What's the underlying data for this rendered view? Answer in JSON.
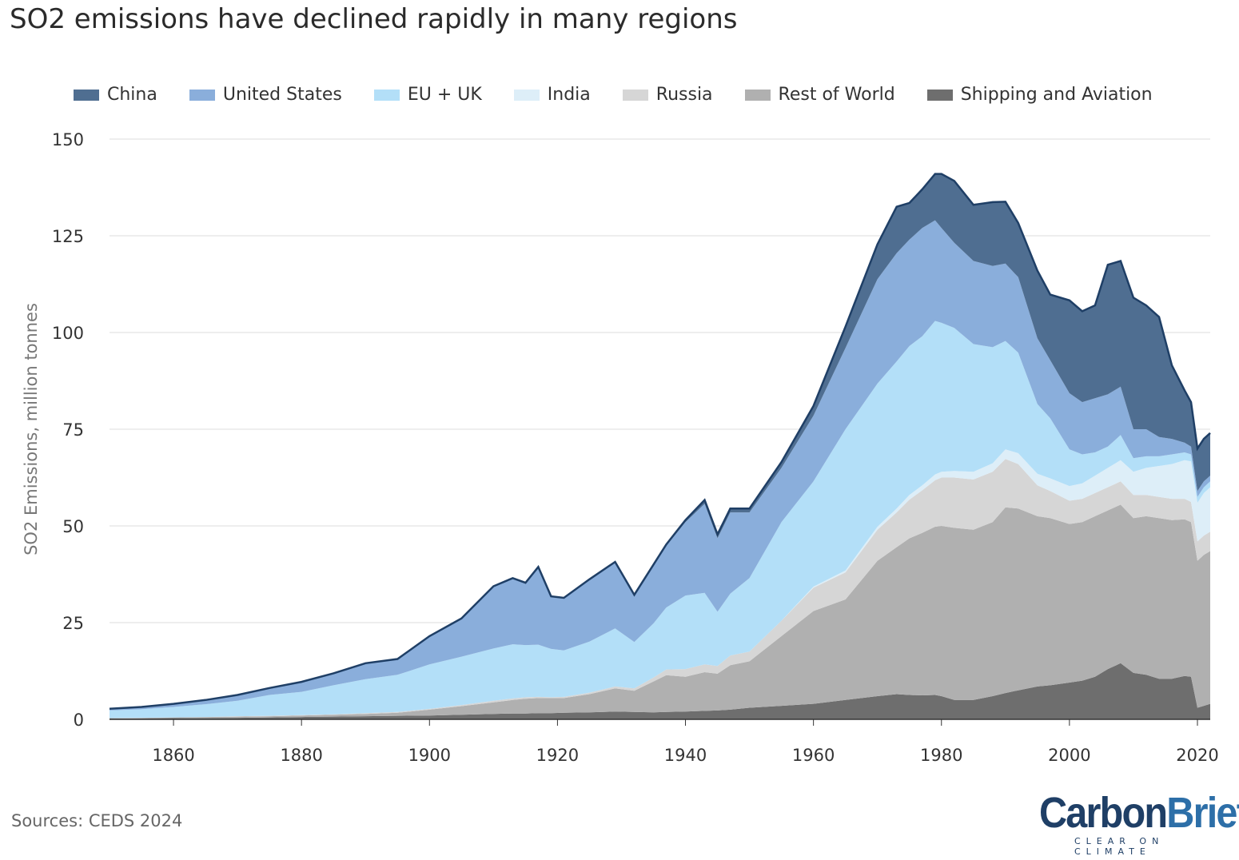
{
  "chart_data": {
    "type": "area",
    "stacked": true,
    "title": "SO2 emissions have declined rapidly in many regions",
    "ylabel": "SO2 Emissions, million tonnes",
    "xlabel": "",
    "xlim": [
      1850,
      2022
    ],
    "ylim": [
      0,
      150
    ],
    "yticks": [
      0,
      25,
      50,
      75,
      100,
      125,
      150
    ],
    "xticks": [
      1860,
      1880,
      1900,
      1920,
      1940,
      1960,
      1980,
      2000,
      2020
    ],
    "grid": true,
    "legend_position": "top",
    "x": [
      1850,
      1855,
      1860,
      1865,
      1870,
      1875,
      1880,
      1885,
      1890,
      1895,
      1900,
      1905,
      1910,
      1913,
      1915,
      1917,
      1919,
      1921,
      1925,
      1929,
      1932,
      1935,
      1937,
      1940,
      1943,
      1945,
      1947,
      1950,
      1955,
      1960,
      1965,
      1970,
      1973,
      1975,
      1977,
      1979,
      1980,
      1982,
      1985,
      1988,
      1990,
      1992,
      1995,
      1997,
      2000,
      2002,
      2004,
      2006,
      2008,
      2010,
      2012,
      2014,
      2016,
      2018,
      2019,
      2020,
      2021,
      2022
    ],
    "series": [
      {
        "name": "Shipping and Aviation",
        "color": "#6e6e6e",
        "values": [
          0.2,
          0.25,
          0.3,
          0.35,
          0.4,
          0.5,
          0.6,
          0.7,
          0.8,
          0.9,
          1.0,
          1.2,
          1.4,
          1.5,
          1.5,
          1.6,
          1.6,
          1.7,
          1.8,
          2.0,
          1.9,
          1.8,
          1.9,
          2.0,
          2.2,
          2.3,
          2.5,
          3.0,
          3.5,
          4.0,
          5.0,
          6.0,
          6.5,
          6.3,
          6.2,
          6.3,
          6.0,
          5.0,
          5.0,
          6.0,
          6.8,
          7.5,
          8.5,
          8.8,
          9.5,
          10.0,
          11.0,
          13.0,
          14.5,
          12.0,
          11.5,
          10.5,
          10.5,
          11.2,
          11.0,
          3.0,
          3.5,
          4.0
        ]
      },
      {
        "name": "Rest of World",
        "color": "#b0b0b0",
        "values": [
          0.1,
          0.15,
          0.2,
          0.25,
          0.3,
          0.3,
          0.4,
          0.5,
          0.6,
          0.8,
          1.5,
          2.2,
          3.0,
          3.5,
          3.8,
          3.9,
          3.9,
          3.8,
          4.7,
          6.0,
          5.5,
          8.0,
          9.5,
          9.0,
          10.0,
          9.5,
          11.5,
          12.0,
          18.0,
          24.0,
          26.0,
          35.0,
          38.0,
          40.5,
          42.0,
          43.5,
          44.0,
          44.5,
          44.0,
          45.0,
          48.0,
          47.0,
          44.0,
          43.2,
          41.0,
          41.0,
          41.5,
          41.0,
          41.0,
          40.0,
          41.0,
          41.5,
          41.0,
          40.5,
          40.0,
          38.0,
          39.0,
          39.5
        ]
      },
      {
        "name": "Russia",
        "color": "#d6d6d6",
        "values": [
          0.0,
          0.0,
          0.0,
          0.0,
          0.1,
          0.1,
          0.1,
          0.1,
          0.2,
          0.2,
          0.2,
          0.3,
          0.4,
          0.4,
          0.4,
          0.3,
          0.2,
          0.3,
          0.4,
          0.5,
          0.6,
          1.0,
          1.5,
          2.0,
          2.0,
          2.0,
          2.5,
          2.5,
          4.0,
          6.0,
          7.0,
          8.0,
          9.0,
          10.0,
          11.0,
          12.0,
          12.5,
          13.0,
          13.0,
          13.0,
          12.5,
          11.5,
          8.0,
          7.0,
          6.0,
          6.0,
          6.0,
          6.0,
          6.0,
          6.0,
          5.5,
          5.5,
          5.5,
          5.3,
          5.2,
          5.0,
          5.0,
          5.0
        ]
      },
      {
        "name": "India",
        "color": "#ddeef8",
        "values": [
          0.0,
          0.0,
          0.0,
          0.0,
          0.0,
          0.0,
          0.0,
          0.0,
          0.0,
          0.0,
          0.0,
          0.0,
          0.0,
          0.0,
          0.0,
          0.0,
          0.0,
          0.0,
          0.0,
          0.0,
          0.0,
          0.0,
          0.0,
          0.0,
          0.0,
          0.0,
          0.0,
          0.0,
          0.0,
          0.3,
          0.5,
          0.8,
          1.0,
          1.2,
          1.3,
          1.5,
          1.5,
          1.7,
          2.0,
          2.2,
          2.5,
          2.8,
          3.0,
          3.3,
          3.8,
          4.0,
          4.5,
          5.0,
          5.5,
          6.0,
          7.0,
          8.0,
          9.0,
          10.0,
          10.5,
          10.0,
          11.0,
          11.5
        ]
      },
      {
        "name": "EU + UK",
        "color": "#b3dff8",
        "values": [
          2.0,
          2.2,
          2.7,
          3.3,
          4.0,
          5.4,
          6.0,
          7.5,
          8.8,
          9.6,
          11.5,
          12.5,
          13.5,
          14.0,
          13.5,
          13.5,
          12.5,
          12.0,
          13.2,
          15.0,
          12.0,
          14.0,
          16.0,
          19.0,
          18.5,
          14.0,
          16.0,
          19.0,
          25.5,
          27.2,
          36.5,
          37.0,
          38.0,
          38.5,
          38.5,
          39.7,
          38.5,
          37.0,
          33.0,
          30.0,
          28.0,
          26.0,
          18.0,
          15.5,
          9.5,
          7.5,
          6.0,
          5.5,
          6.5,
          3.5,
          3.0,
          2.5,
          2.5,
          2.0,
          1.8,
          1.5,
          1.5,
          1.5
        ]
      },
      {
        "name": "United States",
        "color": "#8aaedb",
        "values": [
          0.4,
          0.55,
          0.75,
          1.0,
          1.4,
          1.7,
          2.5,
          3.0,
          4.0,
          4.0,
          7.2,
          9.8,
          16.0,
          17.0,
          16.0,
          20.0,
          13.5,
          13.5,
          16.0,
          17.0,
          12.0,
          15.0,
          16.0,
          19.0,
          23.0,
          19.0,
          21.0,
          17.0,
          14.0,
          17.0,
          21.0,
          27.0,
          28.0,
          27.5,
          28.0,
          26.0,
          24.5,
          22.0,
          21.5,
          21.0,
          20.0,
          19.5,
          17.0,
          15.0,
          14.5,
          13.5,
          14.0,
          13.5,
          12.5,
          7.5,
          7.0,
          5.0,
          4.0,
          2.5,
          2.0,
          1.5,
          1.5,
          1.5
        ]
      },
      {
        "name": "China",
        "color": "#4f6e91",
        "values": [
          0.05,
          0.05,
          0.05,
          0.1,
          0.1,
          0.1,
          0.1,
          0.1,
          0.1,
          0.1,
          0.1,
          0.1,
          0.1,
          0.1,
          0.1,
          0.1,
          0.1,
          0.1,
          0.1,
          0.2,
          0.2,
          0.2,
          0.3,
          0.5,
          1.0,
          1.0,
          1.0,
          1.0,
          1.5,
          2.5,
          5.5,
          9.0,
          12.0,
          9.5,
          10.0,
          12.0,
          14.0,
          16.0,
          14.5,
          16.5,
          16.0,
          14.0,
          17.5,
          17.0,
          24.0,
          23.5,
          24.0,
          33.5,
          32.5,
          34.0,
          32.0,
          31.0,
          19.0,
          13.5,
          11.5,
          11.0,
          11.0,
          11.0
        ]
      }
    ]
  },
  "source_text": "Sources: CEDS 2024",
  "logo": {
    "part1": "Carbon",
    "part2": "Brief",
    "tagline": "CLEAR ON CLIMATE"
  }
}
